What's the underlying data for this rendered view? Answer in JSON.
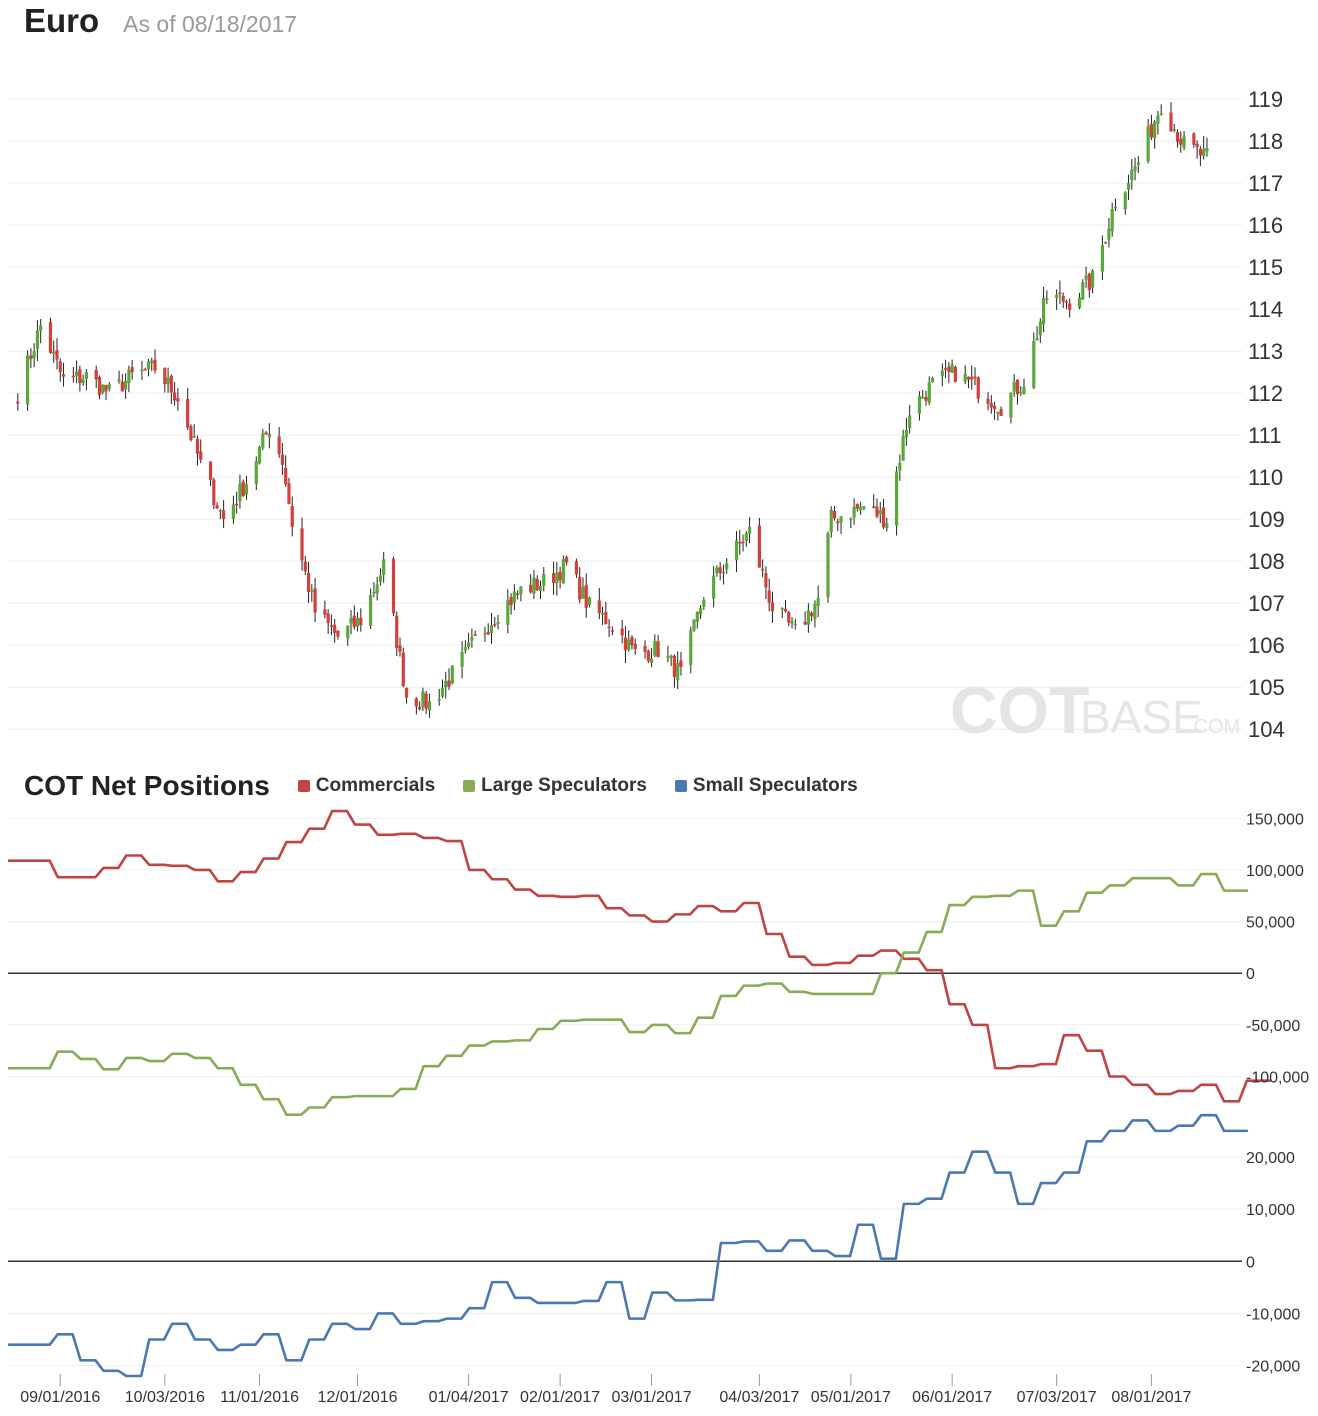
{
  "header": {
    "title": "Euro",
    "subtitle": "As of 08/18/2017"
  },
  "cot": {
    "title": "COT Net Positions",
    "legend": [
      {
        "label": "Commercials",
        "color": "#bf4444"
      },
      {
        "label": "Large Speculators",
        "color": "#8aab55"
      },
      {
        "label": "Small Speculators",
        "color": "#4a78b0"
      }
    ]
  },
  "watermark": {
    "brand": "COT",
    "brand2": "BASE",
    "suffix": ".COM"
  },
  "chart_data": [
    {
      "type": "candlestick",
      "title": "Euro",
      "ylim": [
        103.6,
        119.5
      ],
      "y_ticks": [
        104,
        105,
        106,
        107,
        108,
        109,
        110,
        111,
        112,
        113,
        114,
        115,
        116,
        117,
        118,
        119
      ],
      "grid": true,
      "colors": {
        "up": "#5aa83a",
        "down": "#d43f3a",
        "wick": "#222222"
      },
      "anchors": [
        [
          "2016-08-19",
          112.0
        ],
        [
          "2016-08-26",
          113.6
        ],
        [
          "2016-09-02",
          112.3
        ],
        [
          "2016-09-09",
          112.4
        ],
        [
          "2016-09-16",
          112.0
        ],
        [
          "2016-09-23",
          112.4
        ],
        [
          "2016-09-30",
          112.6
        ],
        [
          "2016-10-07",
          111.9
        ],
        [
          "2016-10-14",
          110.3
        ],
        [
          "2016-10-21",
          109.0
        ],
        [
          "2016-10-28",
          109.9
        ],
        [
          "2016-11-04",
          111.2
        ],
        [
          "2016-11-08",
          110.4
        ],
        [
          "2016-11-11",
          108.9
        ],
        [
          "2016-11-18",
          106.8
        ],
        [
          "2016-11-25",
          106.2
        ],
        [
          "2016-12-02",
          106.6
        ],
        [
          "2016-12-09",
          107.9
        ],
        [
          "2016-12-16",
          104.8
        ],
        [
          "2016-12-23",
          104.6
        ],
        [
          "2016-12-30",
          105.3
        ],
        [
          "2017-01-06",
          106.1
        ],
        [
          "2017-01-13",
          106.8
        ],
        [
          "2017-01-20",
          107.3
        ],
        [
          "2017-01-27",
          107.5
        ],
        [
          "2017-02-03",
          107.9
        ],
        [
          "2017-02-10",
          106.9
        ],
        [
          "2017-02-17",
          106.5
        ],
        [
          "2017-02-24",
          105.8
        ],
        [
          "2017-03-03",
          105.9
        ],
        [
          "2017-03-10",
          105.3
        ],
        [
          "2017-03-17",
          107.2
        ],
        [
          "2017-03-24",
          108.0
        ],
        [
          "2017-03-31",
          108.7
        ],
        [
          "2017-04-07",
          106.9
        ],
        [
          "2017-04-14",
          106.3
        ],
        [
          "2017-04-21",
          107.1
        ],
        [
          "2017-04-25",
          109.0
        ],
        [
          "2017-05-05",
          109.3
        ],
        [
          "2017-05-12",
          109.0
        ],
        [
          "2017-05-19",
          111.6
        ],
        [
          "2017-05-26",
          112.2
        ],
        [
          "2017-06-02",
          112.5
        ],
        [
          "2017-06-09",
          112.1
        ],
        [
          "2017-06-16",
          111.7
        ],
        [
          "2017-06-23",
          112.3
        ],
        [
          "2017-06-30",
          114.3
        ],
        [
          "2017-07-07",
          114.2
        ],
        [
          "2017-07-14",
          114.7
        ],
        [
          "2017-07-21",
          116.6
        ],
        [
          "2017-07-28",
          117.5
        ],
        [
          "2017-08-04",
          118.9
        ],
        [
          "2017-08-11",
          117.9
        ],
        [
          "2017-08-18",
          117.6
        ]
      ]
    },
    {
      "type": "line",
      "title": "COT Net Positions",
      "ylim": [
        -115000,
        160000
      ],
      "y_ticks": [
        -100000,
        -50000,
        0,
        50000,
        100000,
        150000
      ],
      "y_tick_labels": [
        "-100,000",
        "-50,000",
        "0",
        "50,000",
        "100,000",
        "150,000"
      ],
      "series": [
        {
          "name": "Commercials",
          "color": "#bf4444",
          "values": [
            [
              "2016-08-16",
              109000
            ],
            [
              "2016-08-23",
              109000
            ],
            [
              "2016-08-30",
              93000
            ],
            [
              "2016-09-06",
              93000
            ],
            [
              "2016-09-13",
              102000
            ],
            [
              "2016-09-20",
              114000
            ],
            [
              "2016-09-27",
              105000
            ],
            [
              "2016-10-04",
              104000
            ],
            [
              "2016-10-11",
              100000
            ],
            [
              "2016-10-18",
              89000
            ],
            [
              "2016-10-25",
              98000
            ],
            [
              "2016-11-01",
              111000
            ],
            [
              "2016-11-08",
              127000
            ],
            [
              "2016-11-15",
              140000
            ],
            [
              "2016-11-22",
              157000
            ],
            [
              "2016-11-29",
              144000
            ],
            [
              "2016-12-06",
              134000
            ],
            [
              "2016-12-13",
              135000
            ],
            [
              "2016-12-20",
              131000
            ],
            [
              "2016-12-27",
              128000
            ],
            [
              "2017-01-03",
              100000
            ],
            [
              "2017-01-10",
              91000
            ],
            [
              "2017-01-17",
              81000
            ],
            [
              "2017-01-24",
              75000
            ],
            [
              "2017-01-31",
              74000
            ],
            [
              "2017-02-07",
              75000
            ],
            [
              "2017-02-14",
              63000
            ],
            [
              "2017-02-21",
              56000
            ],
            [
              "2017-02-28",
              50000
            ],
            [
              "2017-03-07",
              57000
            ],
            [
              "2017-03-14",
              65000
            ],
            [
              "2017-03-21",
              60000
            ],
            [
              "2017-03-28",
              68000
            ],
            [
              "2017-04-04",
              38000
            ],
            [
              "2017-04-11",
              16000
            ],
            [
              "2017-04-18",
              8000
            ],
            [
              "2017-04-25",
              10000
            ],
            [
              "2017-05-02",
              17000
            ],
            [
              "2017-05-09",
              22000
            ],
            [
              "2017-05-16",
              14000
            ],
            [
              "2017-05-23",
              3000
            ],
            [
              "2017-05-30",
              -30000
            ],
            [
              "2017-06-06",
              -50000
            ],
            [
              "2017-06-13",
              -92000
            ],
            [
              "2017-06-20",
              -90000
            ],
            [
              "2017-06-27",
              -88000
            ],
            [
              "2017-07-04",
              -60000
            ],
            [
              "2017-07-11",
              -75000
            ],
            [
              "2017-07-18",
              -100000
            ],
            [
              "2017-07-25",
              -108000
            ],
            [
              "2017-08-01",
              -117000
            ],
            [
              "2017-08-08",
              -114000
            ],
            [
              "2017-08-15",
              -108000
            ],
            [
              "2017-08-22",
              -124000
            ],
            [
              "2017-08-29",
              -104000
            ],
            [
              "2017-09-05",
              -104000
            ]
          ]
        },
        {
          "name": "Large Speculators",
          "color": "#8aab55",
          "values": [
            [
              "2016-08-16",
              -92000
            ],
            [
              "2016-08-23",
              -92000
            ],
            [
              "2016-08-30",
              -76000
            ],
            [
              "2016-09-06",
              -83000
            ],
            [
              "2016-09-13",
              -93000
            ],
            [
              "2016-09-20",
              -82000
            ],
            [
              "2016-09-27",
              -85000
            ],
            [
              "2016-10-04",
              -78000
            ],
            [
              "2016-10-11",
              -82000
            ],
            [
              "2016-10-18",
              -92000
            ],
            [
              "2016-10-25",
              -108000
            ],
            [
              "2016-11-01",
              -122000
            ],
            [
              "2016-11-08",
              -137000
            ],
            [
              "2016-11-15",
              -130000
            ],
            [
              "2016-11-22",
              -120000
            ],
            [
              "2016-11-29",
              -119000
            ],
            [
              "2016-12-06",
              -119000
            ],
            [
              "2016-12-13",
              -112000
            ],
            [
              "2016-12-20",
              -90000
            ],
            [
              "2016-12-27",
              -80000
            ],
            [
              "2017-01-03",
              -70000
            ],
            [
              "2017-01-10",
              -66000
            ],
            [
              "2017-01-17",
              -65000
            ],
            [
              "2017-01-24",
              -54000
            ],
            [
              "2017-01-31",
              -46000
            ],
            [
              "2017-02-07",
              -45000
            ],
            [
              "2017-02-14",
              -45000
            ],
            [
              "2017-02-21",
              -57000
            ],
            [
              "2017-02-28",
              -50000
            ],
            [
              "2017-03-07",
              -58000
            ],
            [
              "2017-03-14",
              -43000
            ],
            [
              "2017-03-21",
              -22000
            ],
            [
              "2017-03-28",
              -12000
            ],
            [
              "2017-04-04",
              -10000
            ],
            [
              "2017-04-11",
              -18000
            ],
            [
              "2017-04-18",
              -20000
            ],
            [
              "2017-04-25",
              -20000
            ],
            [
              "2017-05-02",
              -20000
            ],
            [
              "2017-05-09",
              0
            ],
            [
              "2017-05-16",
              20000
            ],
            [
              "2017-05-23",
              40000
            ],
            [
              "2017-05-30",
              66000
            ],
            [
              "2017-06-06",
              74000
            ],
            [
              "2017-06-13",
              75000
            ],
            [
              "2017-06-20",
              80000
            ],
            [
              "2017-06-27",
              46000
            ],
            [
              "2017-07-04",
              60000
            ],
            [
              "2017-07-11",
              78000
            ],
            [
              "2017-07-18",
              85000
            ],
            [
              "2017-07-25",
              92000
            ],
            [
              "2017-08-01",
              92000
            ],
            [
              "2017-08-08",
              85000
            ],
            [
              "2017-08-15",
              96000
            ],
            [
              "2017-08-22",
              80000
            ],
            [
              "2017-08-29",
              80000
            ]
          ]
        }
      ]
    },
    {
      "type": "line",
      "title": "",
      "ylim": [
        -22000,
        29000
      ],
      "y_ticks": [
        -20000,
        -10000,
        0,
        10000,
        20000
      ],
      "y_tick_labels": [
        "-20,000",
        "-10,000",
        "0",
        "10,000",
        "20,000"
      ],
      "series": [
        {
          "name": "Small Speculators",
          "color": "#4a78b0",
          "values": [
            [
              "2016-08-16",
              -16000
            ],
            [
              "2016-08-23",
              -16000
            ],
            [
              "2016-08-30",
              -14000
            ],
            [
              "2016-09-06",
              -19000
            ],
            [
              "2016-09-13",
              -21000
            ],
            [
              "2016-09-20",
              -22000
            ],
            [
              "2016-09-27",
              -15000
            ],
            [
              "2016-10-04",
              -12000
            ],
            [
              "2016-10-11",
              -15000
            ],
            [
              "2016-10-18",
              -17000
            ],
            [
              "2016-10-25",
              -16000
            ],
            [
              "2016-11-01",
              -14000
            ],
            [
              "2016-11-08",
              -19000
            ],
            [
              "2016-11-15",
              -15000
            ],
            [
              "2016-11-22",
              -12000
            ],
            [
              "2016-11-29",
              -13000
            ],
            [
              "2016-12-06",
              -10000
            ],
            [
              "2016-12-13",
              -12000
            ],
            [
              "2016-12-20",
              -11500
            ],
            [
              "2016-12-27",
              -11000
            ],
            [
              "2017-01-03",
              -9000
            ],
            [
              "2017-01-10",
              -4000
            ],
            [
              "2017-01-17",
              -7000
            ],
            [
              "2017-01-24",
              -8000
            ],
            [
              "2017-01-31",
              -8000
            ],
            [
              "2017-02-07",
              -7600
            ],
            [
              "2017-02-14",
              -4000
            ],
            [
              "2017-02-21",
              -11000
            ],
            [
              "2017-02-28",
              -6000
            ],
            [
              "2017-03-07",
              -7500
            ],
            [
              "2017-03-14",
              -7400
            ],
            [
              "2017-03-21",
              3500
            ],
            [
              "2017-03-28",
              3800
            ],
            [
              "2017-04-04",
              2000
            ],
            [
              "2017-04-11",
              4000
            ],
            [
              "2017-04-18",
              2000
            ],
            [
              "2017-04-25",
              1000
            ],
            [
              "2017-05-02",
              7000
            ],
            [
              "2017-05-09",
              500
            ],
            [
              "2017-05-16",
              11000
            ],
            [
              "2017-05-23",
              12000
            ],
            [
              "2017-05-30",
              17000
            ],
            [
              "2017-06-06",
              21000
            ],
            [
              "2017-06-13",
              17000
            ],
            [
              "2017-06-20",
              11000
            ],
            [
              "2017-06-27",
              15000
            ],
            [
              "2017-07-04",
              17000
            ],
            [
              "2017-07-11",
              23000
            ],
            [
              "2017-07-18",
              25000
            ],
            [
              "2017-07-25",
              27000
            ],
            [
              "2017-08-01",
              25000
            ],
            [
              "2017-08-08",
              26000
            ],
            [
              "2017-08-15",
              28000
            ],
            [
              "2017-08-22",
              25000
            ],
            [
              "2017-08-29",
              25000
            ]
          ]
        }
      ]
    }
  ],
  "x_axis": {
    "ticks": [
      "2016-09-01",
      "2016-10-03",
      "2016-11-01",
      "2016-12-01",
      "2017-01-04",
      "2017-02-01",
      "2017-03-01",
      "2017-04-03",
      "2017-05-01",
      "2017-06-01",
      "2017-07-03",
      "2017-08-01"
    ],
    "tick_labels": [
      "09/01/2016",
      "10/03/2016",
      "11/01/2016",
      "12/01/2016",
      "01/04/2017",
      "02/01/2017",
      "03/01/2017",
      "04/03/2017",
      "05/01/2017",
      "06/01/2017",
      "07/03/2017",
      "08/01/2017"
    ]
  }
}
